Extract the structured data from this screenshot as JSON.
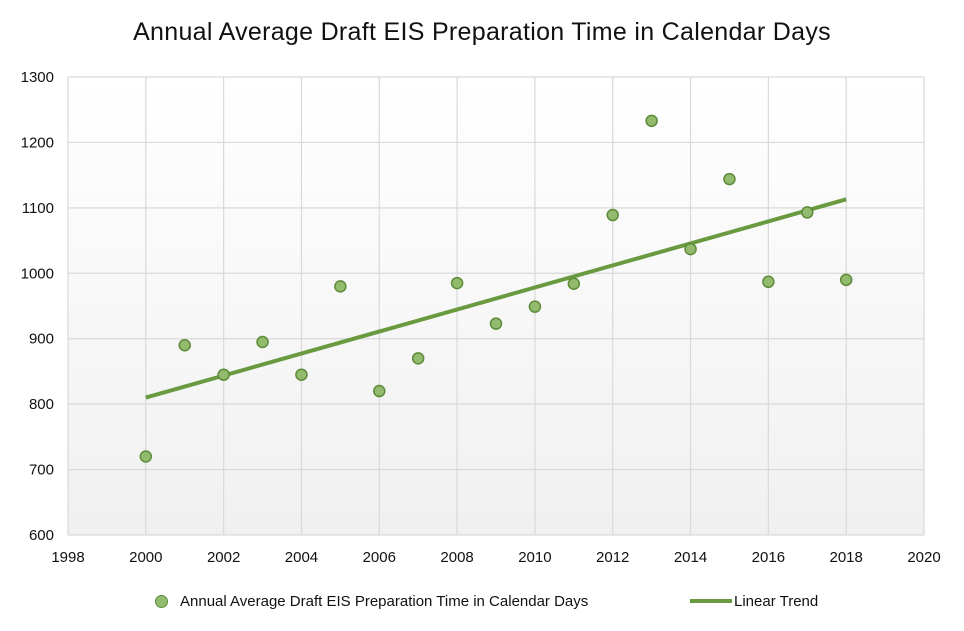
{
  "chart_data": {
    "type": "scatter",
    "title": "Annual Average Draft EIS Preparation Time in Calendar Days",
    "xlabel": "",
    "ylabel": "",
    "xlim": [
      1998,
      2020
    ],
    "ylim": [
      600,
      1300
    ],
    "x_ticks": [
      1998,
      2000,
      2002,
      2004,
      2006,
      2008,
      2010,
      2012,
      2014,
      2016,
      2018,
      2020
    ],
    "y_ticks": [
      600,
      700,
      800,
      900,
      1000,
      1100,
      1200,
      1300
    ],
    "grid": true,
    "legend_position": "bottom",
    "series": [
      {
        "name": "Annual Average Draft EIS Preparation Time in Calendar Days",
        "kind": "scatter",
        "color": "#93bb6e",
        "edge_color": "#5e8b3a",
        "x": [
          2000,
          2001,
          2002,
          2003,
          2004,
          2005,
          2006,
          2007,
          2008,
          2009,
          2010,
          2011,
          2012,
          2013,
          2014,
          2015,
          2016,
          2017,
          2018
        ],
        "y": [
          720,
          890,
          845,
          895,
          845,
          980,
          820,
          870,
          985,
          923,
          949,
          984,
          1089,
          1233,
          1037,
          1144,
          987,
          1093,
          990
        ]
      },
      {
        "name": "Linear Trend",
        "kind": "line",
        "color": "#6a9a3f",
        "x": [
          2000,
          2018
        ],
        "y": [
          810,
          1113
        ]
      }
    ]
  },
  "legend": {
    "scatter_label": "Annual Average Draft EIS Preparation Time in Calendar Days",
    "trend_label": "Linear Trend"
  }
}
